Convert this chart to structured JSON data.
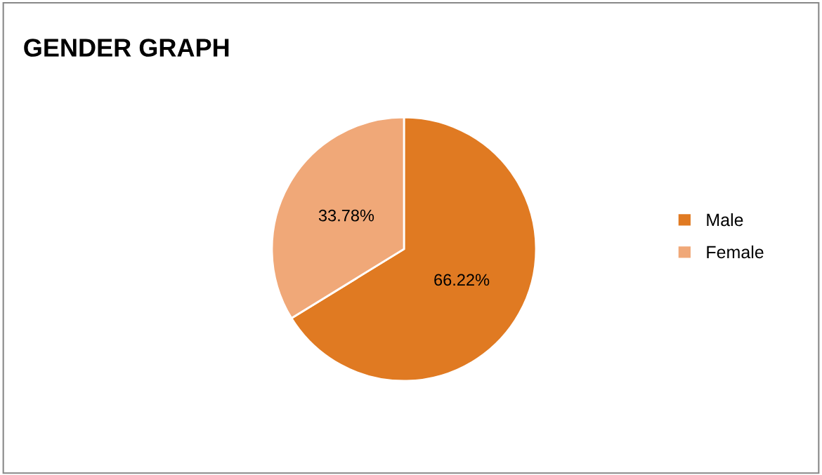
{
  "chart_data": {
    "type": "pie",
    "title": "GENDER GRAPH",
    "categories": [
      "Male",
      "Female"
    ],
    "values": [
      66.22,
      33.78
    ],
    "colors": [
      "#e07a22",
      "#f0a878"
    ],
    "value_labels": [
      "66.22%",
      "33.78%"
    ],
    "legend": "right"
  }
}
